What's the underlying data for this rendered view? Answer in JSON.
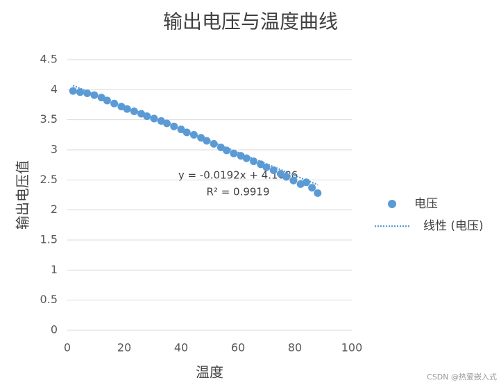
{
  "chart_data": {
    "type": "scatter",
    "title": "输出电压与温度曲线",
    "x_label": "温度",
    "y_label": "输出电压值",
    "xlim": [
      0,
      100
    ],
    "xticks": [
      0,
      20,
      40,
      60,
      80,
      100
    ],
    "ylim": [
      0,
      4.5
    ],
    "yticks": [
      0,
      0.5,
      1,
      1.5,
      2,
      2.5,
      3,
      3.5,
      4,
      4.5
    ],
    "grid": true,
    "legend": "right",
    "series": [
      {
        "name": "电压",
        "color": "#5b9bd5",
        "x": [
          2,
          4.5,
          7,
          9.5,
          12,
          14,
          16.5,
          19,
          21,
          23.5,
          26,
          28,
          30.5,
          33,
          35,
          37.5,
          40,
          42,
          44.5,
          47,
          49,
          51.5,
          54,
          56,
          58.5,
          61,
          63,
          65.5,
          68,
          70,
          72.5,
          75,
          77,
          79.5,
          82,
          84,
          86,
          88
        ],
        "values": [
          3.98,
          3.96,
          3.94,
          3.91,
          3.87,
          3.82,
          3.77,
          3.72,
          3.68,
          3.64,
          3.6,
          3.56,
          3.52,
          3.48,
          3.44,
          3.39,
          3.34,
          3.29,
          3.25,
          3.2,
          3.15,
          3.1,
          3.04,
          2.99,
          2.94,
          2.9,
          2.86,
          2.81,
          2.76,
          2.71,
          2.66,
          2.6,
          2.55,
          2.49,
          2.43,
          2.46,
          2.37,
          2.28
        ]
      }
    ],
    "trendline": {
      "name": "线性 (电压)",
      "color": "#5b9bd5",
      "slope": -0.0192,
      "intercept": 4.1086,
      "equation": "y = -0.0192x + 4.1086",
      "r2_label": "R² = 0.9919"
    },
    "watermark": "CSDN @热爱嵌入式"
  }
}
